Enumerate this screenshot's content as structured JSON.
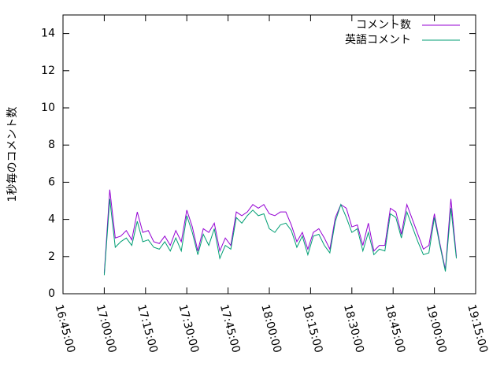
{
  "chart_data": {
    "type": "line",
    "y_label": "1秒毎のコメント数",
    "x": [
      "17:00:00",
      "17:02:00",
      "17:04:00",
      "17:06:00",
      "17:08:00",
      "17:10:00",
      "17:12:00",
      "17:14:00",
      "17:16:00",
      "17:18:00",
      "17:20:00",
      "17:22:00",
      "17:24:00",
      "17:26:00",
      "17:28:00",
      "17:30:00",
      "17:32:00",
      "17:34:00",
      "17:36:00",
      "17:38:00",
      "17:40:00",
      "17:42:00",
      "17:44:00",
      "17:46:00",
      "17:48:00",
      "17:50:00",
      "17:52:00",
      "17:54:00",
      "17:56:00",
      "17:58:00",
      "18:00:00",
      "18:02:00",
      "18:04:00",
      "18:06:00",
      "18:08:00",
      "18:10:00",
      "18:12:00",
      "18:14:00",
      "18:16:00",
      "18:18:00",
      "18:20:00",
      "18:22:00",
      "18:24:00",
      "18:26:00",
      "18:28:00",
      "18:30:00",
      "18:32:00",
      "18:34:00",
      "18:36:00",
      "18:38:00",
      "18:40:00",
      "18:42:00",
      "18:44:00",
      "18:46:00",
      "18:48:00",
      "18:50:00",
      "18:52:00",
      "18:54:00",
      "18:56:00",
      "18:58:00",
      "19:00:00",
      "19:02:00",
      "19:04:00",
      "19:06:00",
      "19:08:00"
    ],
    "series": [
      {
        "name": "コメント数",
        "color": "#9400d3",
        "values": [
          1.1,
          5.6,
          3.0,
          3.1,
          3.4,
          2.9,
          4.4,
          3.3,
          3.4,
          2.8,
          2.7,
          3.1,
          2.6,
          3.4,
          2.8,
          4.5,
          3.6,
          2.3,
          3.5,
          3.3,
          3.8,
          2.3,
          3.0,
          2.6,
          4.4,
          4.2,
          4.4,
          4.8,
          4.6,
          4.8,
          4.3,
          4.2,
          4.4,
          4.4,
          3.7,
          2.8,
          3.3,
          2.4,
          3.3,
          3.5,
          3.0,
          2.4,
          4.1,
          4.8,
          4.6,
          3.6,
          3.7,
          2.6,
          3.8,
          2.3,
          2.6,
          2.6,
          4.6,
          4.4,
          3.2,
          4.8,
          4.0,
          3.2,
          2.4,
          2.6,
          4.3,
          2.7,
          1.3,
          5.1,
          2.0
        ]
      },
      {
        "name": "英語コメント",
        "color": "#009e73",
        "values": [
          1.0,
          5.1,
          2.5,
          2.8,
          3.0,
          2.6,
          3.9,
          2.8,
          2.9,
          2.5,
          2.4,
          2.8,
          2.3,
          3.0,
          2.3,
          4.2,
          3.3,
          2.1,
          3.2,
          2.6,
          3.5,
          1.9,
          2.6,
          2.4,
          4.1,
          3.8,
          4.2,
          4.5,
          4.2,
          4.3,
          3.5,
          3.3,
          3.7,
          3.8,
          3.4,
          2.5,
          3.1,
          2.1,
          3.1,
          3.2,
          2.6,
          2.2,
          3.9,
          4.8,
          4.1,
          3.3,
          3.5,
          2.3,
          3.3,
          2.1,
          2.4,
          2.3,
          4.3,
          4.1,
          3.0,
          4.4,
          3.6,
          2.8,
          2.1,
          2.2,
          4.1,
          2.6,
          1.2,
          4.6,
          1.9
        ]
      }
    ],
    "xlim": [
      "16:45:00",
      "19:15:00"
    ],
    "xticks": [
      "16:45:00",
      "17:00:00",
      "17:15:00",
      "17:30:00",
      "17:45:00",
      "18:00:00",
      "18:15:00",
      "18:30:00",
      "18:45:00",
      "19:00:00",
      "19:15:00"
    ],
    "ylim": [
      0,
      15
    ],
    "yticks": [
      0,
      2,
      4,
      6,
      8,
      10,
      12,
      14
    ],
    "legend": "top-right"
  }
}
